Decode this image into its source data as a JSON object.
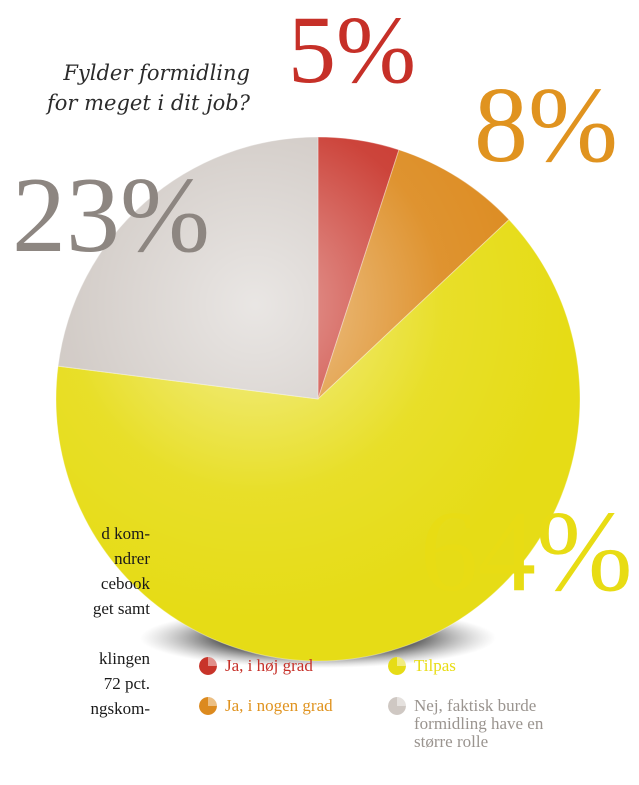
{
  "chart_data": {
    "type": "pie",
    "title": "Fylder formidling for meget i dit job?",
    "title_lines": [
      "Fylder formidling",
      "for meget i dit job?"
    ],
    "unit": "%",
    "start_angle_deg": 0,
    "direction": "clockwise",
    "slices": [
      {
        "label": "Ja, i høj grad",
        "value": 5,
        "display": "5%",
        "color": "#c8342a",
        "label_color": "#c63028"
      },
      {
        "label": "Ja, i nogen grad",
        "value": 8,
        "display": "8%",
        "color": "#dc8a1e",
        "label_color": "#e0931f"
      },
      {
        "label": "Tilpas",
        "value": 64,
        "display": "64%",
        "color": "#e6dc16",
        "label_color": "#e8dc14"
      },
      {
        "label": "Nej, faktisk burde formidling have en større rolle",
        "value": 23,
        "display": "23%",
        "color": "#cfc8c3",
        "label_color": "#8d8681"
      }
    ],
    "legend": [
      {
        "label": "Ja, i høj grad",
        "color": "#c63028"
      },
      {
        "label": "Ja, i nogen grad",
        "color": "#e0931f"
      },
      {
        "label": "Tilpas",
        "color": "#e8dc14"
      },
      {
        "label": "Nej, faktisk burde formidling have en større rolle",
        "label_lines": [
          "Nej, faktisk burde",
          "formidling have en",
          "større rolle"
        ],
        "color": "#9a948f"
      }
    ]
  },
  "body_text": {
    "lines": [
      "d kom-",
      "ndrer",
      "cebook",
      "get samt",
      "",
      "klingen",
      "72 pct.",
      "ngskom-"
    ]
  }
}
